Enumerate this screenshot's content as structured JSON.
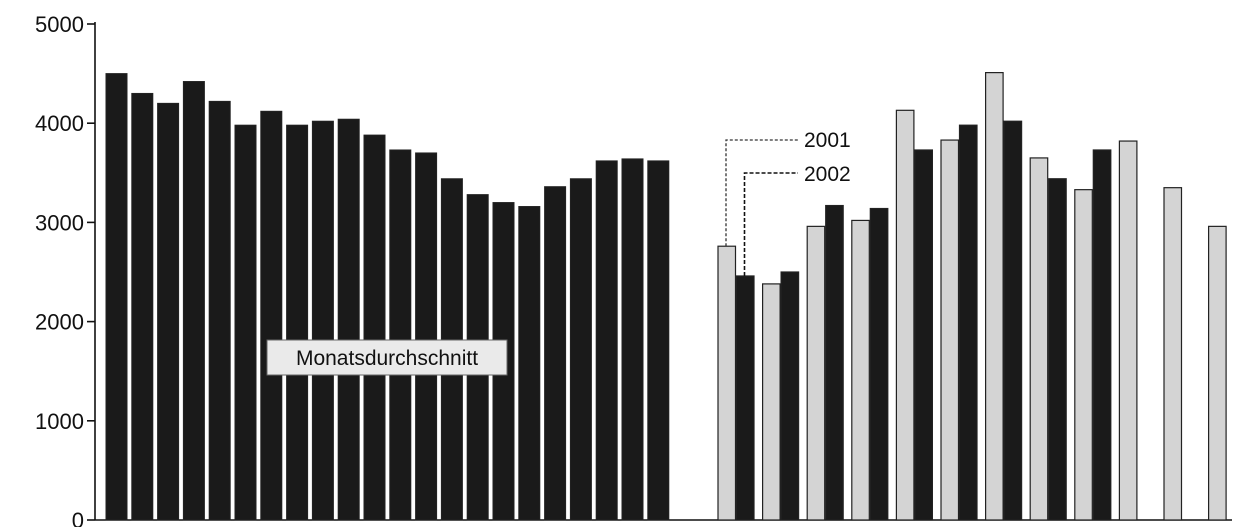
{
  "chart_data": {
    "type": "bar",
    "title": "",
    "xlabel": "",
    "ylabel": "",
    "ylim": [
      0,
      5000
    ],
    "yticks": [
      0,
      1000,
      2000,
      3000,
      4000,
      5000
    ],
    "grid": false,
    "annotation": "Monatsdurchschnitt",
    "colors": {
      "dark": "#1a1a1a",
      "light": "#d4d4d4",
      "outline": "#222222"
    },
    "monthly_average": {
      "values": [
        4500,
        4300,
        4200,
        4420,
        4220,
        3980,
        4120,
        3980,
        4020,
        4040,
        3880,
        3730,
        3700,
        3440,
        3280,
        3200,
        3160,
        3360,
        3440,
        3620,
        3640,
        3620
      ]
    },
    "series": [
      {
        "name": "2001",
        "values": [
          2760,
          2380,
          2960,
          3020,
          4130,
          3830,
          4510,
          3650,
          3330,
          3820,
          3350,
          2960
        ]
      },
      {
        "name": "2002",
        "values": [
          2460,
          2500,
          3170,
          3140,
          3730,
          3980,
          4020,
          3440,
          3730
        ]
      }
    ]
  }
}
